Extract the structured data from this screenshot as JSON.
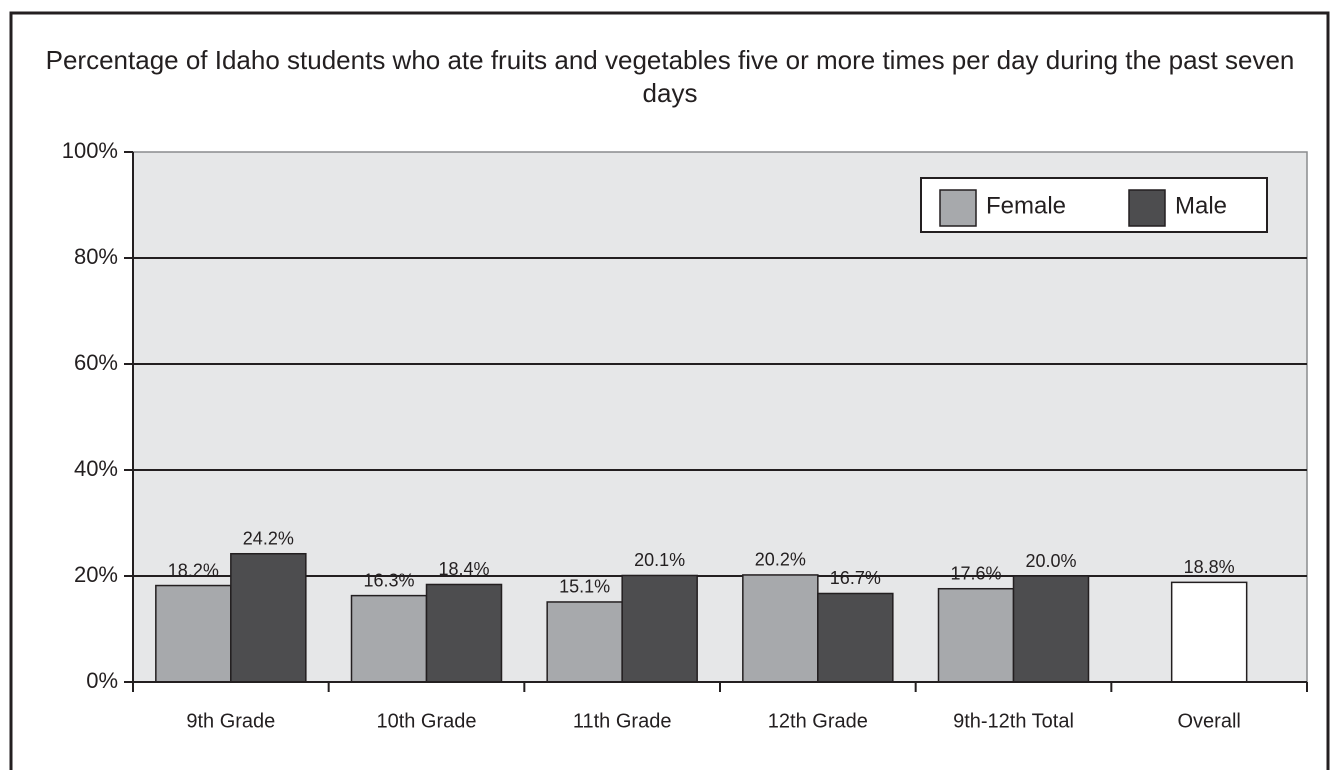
{
  "chart_data": {
    "type": "bar",
    "title": "Percentage of Idaho students who ate fruits and vegetables five or more times per day during the past seven days",
    "categories": [
      "9th Grade",
      "10th Grade",
      "11th Grade",
      "12th Grade",
      "9th-12th Total",
      "Overall"
    ],
    "series": [
      {
        "name": "Female",
        "color": "#a7a9ac",
        "values": [
          18.2,
          16.3,
          15.1,
          20.2,
          17.6,
          null
        ],
        "value_labels": [
          "18.2%",
          "16.3%",
          "15.1%",
          "20.2%",
          "17.6%",
          null
        ]
      },
      {
        "name": "Male",
        "color": "#4d4d4f",
        "values": [
          24.2,
          18.4,
          20.1,
          16.7,
          20.0,
          null
        ],
        "value_labels": [
          "24.2%",
          "18.4%",
          "20.1%",
          "16.7%",
          "20.0%",
          null
        ]
      },
      {
        "color": "#ffffff",
        "values": [
          null,
          null,
          null,
          null,
          null,
          18.8
        ],
        "value_labels": [
          null,
          null,
          null,
          null,
          null,
          "18.8%"
        ]
      }
    ],
    "ylim": [
      0,
      100
    ],
    "yticks": [
      {
        "value": 0,
        "label": "0%"
      },
      {
        "value": 20,
        "label": "20%"
      },
      {
        "value": 40,
        "label": "40%"
      },
      {
        "value": 60,
        "label": "60%"
      },
      {
        "value": 80,
        "label": "80%"
      },
      {
        "value": 100,
        "label": "100%"
      }
    ],
    "grid": true,
    "legend": "upper right",
    "plot_background": "#e6e7e8"
  }
}
